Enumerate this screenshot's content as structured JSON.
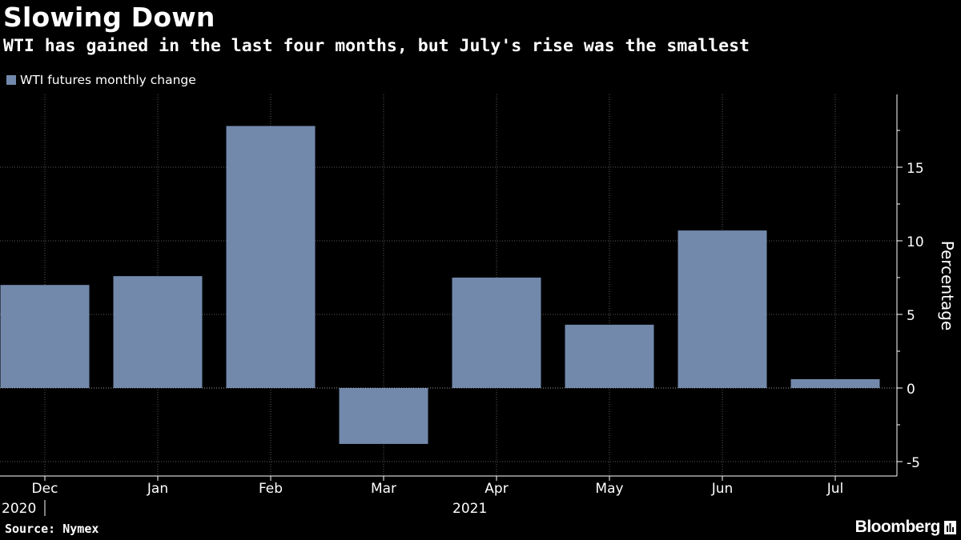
{
  "title": "Slowing Down",
  "subtitle": "WTI has gained in the last four months, but July's rise was the smallest",
  "legend": {
    "label": "WTI futures monthly change",
    "color": "#7289ac"
  },
  "source": "Source: Nymex",
  "brand": "Bloomberg",
  "chart_data": {
    "type": "bar",
    "title": "Slowing Down",
    "subtitle": "WTI has gained in the last four months, but July's rise was the smallest",
    "categories": [
      "Dec",
      "Jan",
      "Feb",
      "Mar",
      "Apr",
      "May",
      "Jun",
      "Jul"
    ],
    "year_labels": [
      {
        "year": "2020",
        "category": "Dec"
      },
      {
        "year": "2021",
        "category": "Apr"
      }
    ],
    "series": [
      {
        "name": "WTI futures monthly change",
        "values": [
          7.0,
          7.6,
          17.8,
          -3.8,
          7.5,
          4.3,
          10.7,
          0.6
        ]
      }
    ],
    "xlabel": "",
    "ylabel": "Percentage",
    "ylim": [
      -6,
      19.5
    ],
    "yticks": [
      -5,
      0,
      5,
      10,
      15
    ],
    "ytick_labels": [
      "-5",
      "0",
      "5",
      "10",
      "15"
    ],
    "grid": true,
    "bar_color": "#7289ac",
    "legend_position": "top-left"
  }
}
